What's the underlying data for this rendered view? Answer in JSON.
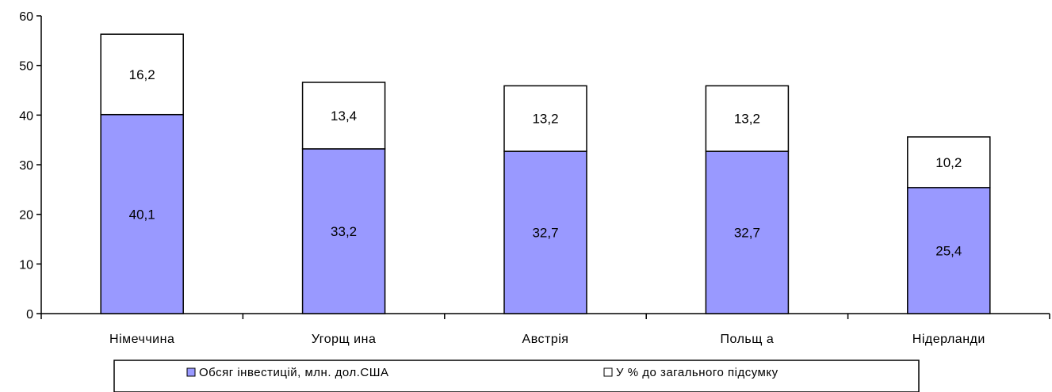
{
  "chart_data": {
    "type": "bar",
    "stacked": true,
    "categories": [
      "Німеччина",
      "Угорщина",
      "Австрія",
      "Польща",
      "Нідерланди"
    ],
    "category_labels": [
      "Німеччина",
      "Угорщ ина",
      "Австрія",
      "Польщ а",
      "Нідерланди"
    ],
    "series": [
      {
        "name": "Обсяг інвестицій, млн. дол.США",
        "legend_label": "Обсяг інвестицій, млн. дол.США",
        "values": [
          40.1,
          33.2,
          32.7,
          32.7,
          25.4
        ],
        "labels": [
          "40,1",
          "33,2",
          "32,7",
          "32,7",
          "25,4"
        ],
        "color": "#9999ff"
      },
      {
        "name": "У % до загального підсумку",
        "legend_label": "У % до загального підсумку",
        "values": [
          16.2,
          13.4,
          13.2,
          13.2,
          10.2
        ],
        "labels": [
          "16,2",
          "13,4",
          "13,2",
          "13,2",
          "10,2"
        ],
        "color": "#ffffff"
      }
    ],
    "ylim": [
      0,
      60
    ],
    "yticks": [
      0,
      10,
      20,
      30,
      40,
      50,
      60
    ],
    "ytick_labels": [
      "0",
      "10",
      "20",
      "30",
      "40",
      "50",
      "60"
    ],
    "grid": false,
    "legend_position": "bottom",
    "title": "",
    "xlabel": "",
    "ylabel": ""
  }
}
